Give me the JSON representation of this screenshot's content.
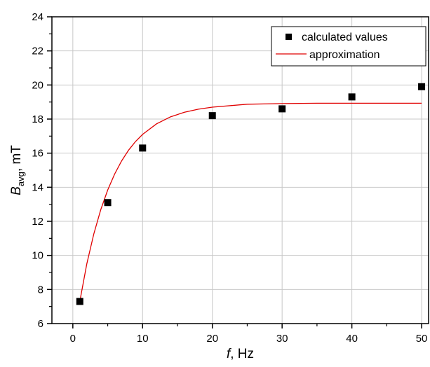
{
  "chart_data": {
    "type": "scatter",
    "xlim": [
      -3,
      51
    ],
    "ylim": [
      6,
      24
    ],
    "x_ticks": [
      0,
      10,
      20,
      30,
      40,
      50
    ],
    "y_ticks": [
      6,
      8,
      10,
      12,
      14,
      16,
      18,
      20,
      22,
      24
    ],
    "grid": true,
    "legend_position": "top-right",
    "xlabel": {
      "italic": "f",
      "rest": ", Hz"
    },
    "ylabel": {
      "italic": "B",
      "sub": "avg",
      "rest": ", mT"
    },
    "series": [
      {
        "name": "calculated values",
        "kind": "points",
        "marker": "square",
        "color": "#000000",
        "x": [
          1,
          5,
          10,
          20,
          30,
          40,
          50
        ],
        "y": [
          7.3,
          13.1,
          16.3,
          18.2,
          18.6,
          19.3,
          19.9
        ]
      },
      {
        "name": "approximation",
        "kind": "line",
        "color": "#e00000",
        "x": [
          1,
          2,
          3,
          4,
          5,
          6,
          7,
          8,
          9,
          10,
          12,
          14,
          16,
          18,
          20,
          25,
          30,
          35,
          40,
          45,
          50
        ],
        "y": [
          7.3,
          9.5,
          11.25,
          12.68,
          13.84,
          14.78,
          15.55,
          16.18,
          16.69,
          17.1,
          17.72,
          18.13,
          18.4,
          18.58,
          18.7,
          18.87,
          18.91,
          18.93,
          18.93,
          18.93,
          18.93
        ]
      }
    ]
  }
}
